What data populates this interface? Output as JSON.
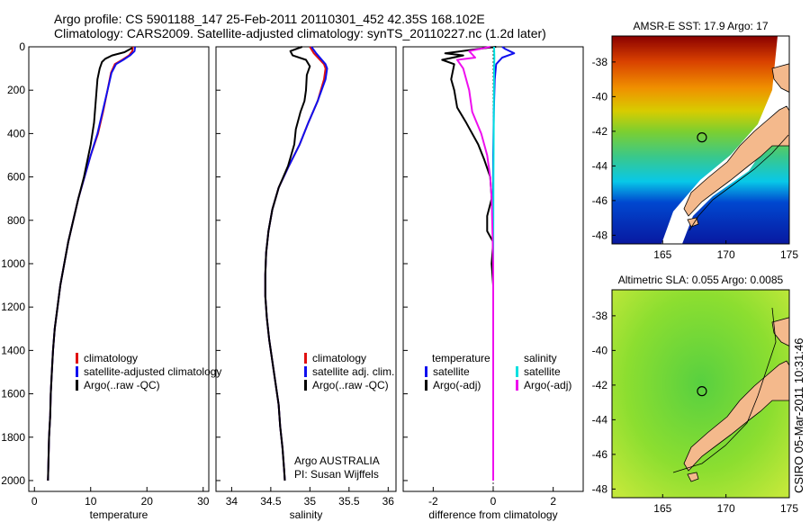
{
  "header": {
    "title_line1": "Argo profile: CS 5901188_147 25-Feb-2011 20110301_452 42.35S 168.102E",
    "title_line2": "Climatology: CARS2009. Satellite-adjusted climatology: synTS_20110227.nc (1.2d later)"
  },
  "side_stamp": "CSIRO 05-Mar-2011 10:31:46",
  "colors": {
    "climatology": "#e01010",
    "satellite": "#1010ee",
    "argo": "#000000",
    "sal_satellite": "#00e0e0",
    "sal_argo": "#ee10ee",
    "land": "#f4b98c"
  },
  "chart_data": [
    {
      "type": "line",
      "xlabel": "temperature",
      "xlim": [
        -1,
        31
      ],
      "xticks": [
        0,
        10,
        20,
        30
      ],
      "ylim": [
        2050,
        0
      ],
      "yticks": [
        0,
        200,
        400,
        600,
        800,
        1000,
        1200,
        1400,
        1600,
        1800,
        2000
      ],
      "legend": [
        "climatology",
        "satellite-adjusted climatology",
        "Argo(..raw -QC)"
      ],
      "series": [
        {
          "name": "climatology",
          "color": "#e01010",
          "points": [
            [
              17.5,
              0
            ],
            [
              17.4,
              20
            ],
            [
              16.8,
              40
            ],
            [
              15.6,
              60
            ],
            [
              14.3,
              80
            ],
            [
              13.6,
              120
            ],
            [
              13.0,
              200
            ],
            [
              12.2,
              300
            ],
            [
              11.3,
              400
            ],
            [
              10.0,
              500
            ],
            [
              8.9,
              600
            ],
            [
              7.8,
              700
            ],
            [
              6.9,
              800
            ],
            [
              6.0,
              900
            ],
            [
              5.3,
              1000
            ],
            [
              4.6,
              1100
            ],
            [
              4.1,
              1200
            ],
            [
              3.6,
              1300
            ],
            [
              3.3,
              1400
            ],
            [
              3.1,
              1500
            ],
            [
              2.9,
              1600
            ],
            [
              2.8,
              1700
            ],
            [
              2.6,
              1800
            ],
            [
              2.5,
              1900
            ],
            [
              2.4,
              2000
            ]
          ]
        },
        {
          "name": "satellite-adjusted climatology",
          "color": "#1010ee",
          "points": [
            [
              17.9,
              0
            ],
            [
              17.8,
              20
            ],
            [
              17.0,
              40
            ],
            [
              15.8,
              60
            ],
            [
              14.5,
              80
            ],
            [
              13.7,
              120
            ],
            [
              13.0,
              200
            ],
            [
              12.1,
              300
            ],
            [
              11.2,
              400
            ],
            [
              10.0,
              500
            ],
            [
              8.9,
              600
            ],
            [
              7.8,
              700
            ],
            [
              6.9,
              800
            ],
            [
              6.0,
              900
            ],
            [
              5.3,
              1000
            ],
            [
              4.6,
              1100
            ],
            [
              4.1,
              1200
            ],
            [
              3.6,
              1300
            ],
            [
              3.3,
              1400
            ],
            [
              3.1,
              1500
            ],
            [
              2.9,
              1600
            ],
            [
              2.8,
              1700
            ],
            [
              2.6,
              1800
            ],
            [
              2.5,
              1900
            ],
            [
              2.4,
              2000
            ]
          ]
        },
        {
          "name": "Argo(..raw -QC)",
          "color": "#000000",
          "points": [
            [
              17.4,
              5
            ],
            [
              16.0,
              25
            ],
            [
              13.8,
              40
            ],
            [
              12.6,
              55
            ],
            [
              12.0,
              70
            ],
            [
              11.6,
              100
            ],
            [
              11.2,
              150
            ],
            [
              10.9,
              250
            ],
            [
              10.6,
              350
            ],
            [
              10.0,
              450
            ],
            [
              8.8,
              600
            ],
            [
              7.8,
              700
            ],
            [
              6.9,
              800
            ],
            [
              6.0,
              900
            ],
            [
              5.3,
              1000
            ],
            [
              4.6,
              1100
            ],
            [
              4.1,
              1200
            ],
            [
              3.6,
              1300
            ],
            [
              3.3,
              1400
            ],
            [
              3.1,
              1500
            ],
            [
              2.9,
              1600
            ],
            [
              2.8,
              1700
            ],
            [
              2.6,
              1800
            ],
            [
              2.5,
              1900
            ],
            [
              2.4,
              2000
            ]
          ]
        }
      ]
    },
    {
      "type": "line",
      "xlabel": "salinity",
      "xlim": [
        33.8,
        36.1
      ],
      "xticks": [
        34,
        34.5,
        35,
        35.5,
        36
      ],
      "ylim": [
        2050,
        0
      ],
      "legend": [
        "climatology",
        "satellite adj. clim.",
        "Argo(..raw -QC)"
      ],
      "annotation": [
        "Argo AUSTRALIA",
        "PI: Susan Wijffels"
      ],
      "series": [
        {
          "name": "climatology",
          "color": "#e01010",
          "points": [
            [
              35.0,
              0
            ],
            [
              35.05,
              30
            ],
            [
              35.18,
              80
            ],
            [
              35.2,
              100
            ],
            [
              35.18,
              150
            ],
            [
              35.1,
              250
            ],
            [
              34.98,
              350
            ],
            [
              34.87,
              450
            ],
            [
              34.73,
              550
            ],
            [
              34.6,
              650
            ],
            [
              34.52,
              750
            ],
            [
              34.47,
              850
            ],
            [
              34.44,
              950
            ],
            [
              34.43,
              1050
            ],
            [
              34.43,
              1150
            ],
            [
              34.45,
              1250
            ],
            [
              34.48,
              1350
            ],
            [
              34.52,
              1450
            ],
            [
              34.56,
              1550
            ],
            [
              34.6,
              1650
            ],
            [
              34.62,
              1750
            ],
            [
              34.65,
              1850
            ],
            [
              34.67,
              1950
            ],
            [
              34.68,
              2000
            ]
          ]
        },
        {
          "name": "satellite adj. clim.",
          "color": "#1010ee",
          "points": [
            [
              35.02,
              0
            ],
            [
              35.08,
              30
            ],
            [
              35.2,
              80
            ],
            [
              35.22,
              100
            ],
            [
              35.2,
              150
            ],
            [
              35.1,
              250
            ],
            [
              34.98,
              350
            ],
            [
              34.87,
              450
            ],
            [
              34.73,
              550
            ],
            [
              34.6,
              650
            ],
            [
              34.52,
              750
            ],
            [
              34.47,
              850
            ],
            [
              34.44,
              950
            ],
            [
              34.43,
              1050
            ],
            [
              34.43,
              1150
            ],
            [
              34.45,
              1250
            ],
            [
              34.48,
              1350
            ],
            [
              34.52,
              1450
            ],
            [
              34.56,
              1550
            ],
            [
              34.6,
              1650
            ],
            [
              34.62,
              1750
            ],
            [
              34.65,
              1850
            ],
            [
              34.67,
              1950
            ],
            [
              34.68,
              2000
            ]
          ]
        },
        {
          "name": "Argo(..raw -QC)",
          "color": "#000000",
          "points": [
            [
              34.9,
              0
            ],
            [
              34.75,
              20
            ],
            [
              34.78,
              40
            ],
            [
              34.95,
              60
            ],
            [
              35.0,
              90
            ],
            [
              34.96,
              130
            ],
            [
              34.95,
              200
            ],
            [
              34.93,
              250
            ],
            [
              34.88,
              300
            ],
            [
              34.82,
              380
            ],
            [
              34.8,
              450
            ],
            [
              34.72,
              550
            ],
            [
              34.6,
              650
            ],
            [
              34.52,
              750
            ],
            [
              34.47,
              850
            ],
            [
              34.44,
              950
            ],
            [
              34.43,
              1050
            ],
            [
              34.43,
              1150
            ],
            [
              34.45,
              1250
            ],
            [
              34.48,
              1350
            ],
            [
              34.52,
              1450
            ],
            [
              34.56,
              1550
            ],
            [
              34.6,
              1650
            ],
            [
              34.62,
              1750
            ],
            [
              34.65,
              1850
            ],
            [
              34.67,
              1950
            ],
            [
              34.68,
              2000
            ]
          ]
        }
      ]
    },
    {
      "type": "line",
      "xlabel": "difference from climatology",
      "xlim": [
        -3,
        3
      ],
      "xticks": [
        -2,
        0,
        2
      ],
      "ylim": [
        2050,
        0
      ],
      "legend_titles": [
        "temperature",
        "salinity"
      ],
      "legend": [
        "satellite",
        "Argo(-adj)",
        "satellite",
        "Argo(-adj)"
      ],
      "series": [
        {
          "name": "satellite",
          "color": "#1010ee",
          "points": [
            [
              0.3,
              0
            ],
            [
              0.4,
              10
            ],
            [
              0.7,
              30
            ],
            [
              0.3,
              50
            ],
            [
              0.1,
              80
            ],
            [
              0.05,
              150
            ],
            [
              0.02,
              300
            ],
            [
              0.0,
              500
            ],
            [
              0.0,
              1000
            ],
            [
              0.0,
              2000
            ]
          ]
        },
        {
          "name": "Argo(-adj)",
          "color": "#000000",
          "points": [
            [
              0.1,
              0
            ],
            [
              -0.5,
              10
            ],
            [
              -1.6,
              30
            ],
            [
              -1.0,
              40
            ],
            [
              -1.7,
              60
            ],
            [
              -1.3,
              80
            ],
            [
              -1.4,
              150
            ],
            [
              -1.3,
              200
            ],
            [
              -1.2,
              280
            ],
            [
              -0.9,
              350
            ],
            [
              -0.5,
              450
            ],
            [
              -0.3,
              520
            ],
            [
              -0.1,
              600
            ],
            [
              -0.05,
              700
            ],
            [
              -0.2,
              780
            ],
            [
              -0.2,
              850
            ],
            [
              0.0,
              900
            ],
            [
              -0.05,
              1000
            ],
            [
              0.0,
              1100
            ],
            [
              0.0,
              1200
            ],
            [
              0.0,
              1300
            ],
            [
              0.0,
              2000
            ]
          ]
        },
        {
          "name": "satellite",
          "color": "#00e0e0",
          "points": [
            [
              0.03,
              0
            ],
            [
              0.04,
              50
            ],
            [
              0.03,
              100
            ],
            [
              0.02,
              300
            ],
            [
              0.01,
              600
            ],
            [
              0.0,
              1000
            ],
            [
              0.0,
              2000
            ]
          ]
        },
        {
          "name": "Argo(-adj)",
          "color": "#ee10ee",
          "points": [
            [
              -0.1,
              0
            ],
            [
              -0.8,
              20
            ],
            [
              -0.6,
              50
            ],
            [
              -1.2,
              60
            ],
            [
              -1.0,
              100
            ],
            [
              -0.8,
              200
            ],
            [
              -0.7,
              300
            ],
            [
              -0.4,
              400
            ],
            [
              -0.2,
              500
            ],
            [
              -0.1,
              600
            ],
            [
              -0.05,
              700
            ],
            [
              0.0,
              1000
            ],
            [
              0.0,
              2000
            ]
          ]
        }
      ]
    },
    {
      "type": "heatmap",
      "title": "AMSR-E SST: 17.9 Argo: 17",
      "xlim": [
        161,
        175
      ],
      "xticks": [
        165,
        170,
        175
      ],
      "ylim": [
        -48.5,
        -36.5
      ],
      "yticks": [
        -38,
        -40,
        -42,
        -44,
        -46,
        -48
      ],
      "marker": {
        "lon": 168.1,
        "lat": -42.35
      }
    },
    {
      "type": "heatmap",
      "title": "Altimetric SLA: 0.055 Argo: 0.0085",
      "xlim": [
        161,
        175
      ],
      "xticks": [
        165,
        170,
        175
      ],
      "ylim": [
        -48.5,
        -36.5
      ],
      "yticks": [
        -38,
        -40,
        -42,
        -44,
        -46,
        -48
      ],
      "marker": {
        "lon": 168.1,
        "lat": -42.35
      }
    }
  ]
}
